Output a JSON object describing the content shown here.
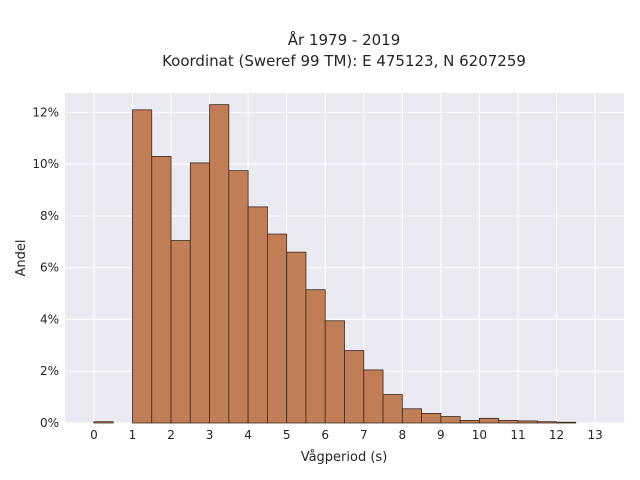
{
  "chart_data": {
    "type": "bar",
    "title_line1": "År 1979 - 2019",
    "title_line2": "Koordinat (Sweref 99 TM): E 475123, N 6207259",
    "xlabel": "Vågperiod (s)",
    "ylabel": "Andel",
    "xlim": [
      -0.75,
      13.75
    ],
    "ylim": [
      0,
      12.75
    ],
    "x_ticks": [
      "0",
      "1",
      "2",
      "3",
      "4",
      "5",
      "6",
      "7",
      "8",
      "9",
      "10",
      "11",
      "12",
      "13"
    ],
    "y_ticks": [
      "0%",
      "2%",
      "4%",
      "6%",
      "8%",
      "10%",
      "12%"
    ],
    "y_tick_values": [
      0,
      2,
      4,
      6,
      8,
      10,
      12
    ],
    "bin_width": 0.5,
    "bin_starts": [
      0,
      1,
      1.5,
      2,
      2.5,
      3,
      3.5,
      4,
      4.5,
      5,
      5.5,
      6,
      6.5,
      7,
      7.5,
      8,
      8.5,
      9,
      9.5,
      10,
      10.5,
      11,
      11.5,
      12
    ],
    "values": [
      0.05,
      12.1,
      10.3,
      7.05,
      10.05,
      12.3,
      9.75,
      8.35,
      7.3,
      6.6,
      5.15,
      3.95,
      2.8,
      2.05,
      1.1,
      0.55,
      0.37,
      0.25,
      0.1,
      0.18,
      0.1,
      0.08,
      0.05,
      0.03
    ],
    "grid": true,
    "colors": {
      "bar_fill": "#c07d56",
      "bar_edge": "#3a2a20",
      "plot_background": "#eaeaf2",
      "grid": "#ffffff"
    }
  }
}
